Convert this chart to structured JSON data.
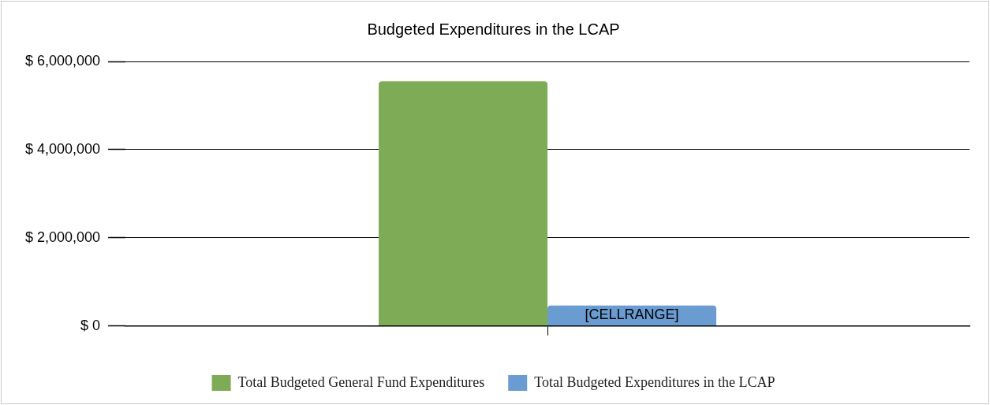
{
  "chart_data": {
    "type": "bar",
    "title": "Budgeted Expenditures in the LCAP",
    "categories": [
      null
    ],
    "series": [
      {
        "name": "Total Budgeted General Fund Expenditures",
        "color": "#7eab55",
        "values": [
          5550000
        ]
      },
      {
        "name": "Total Budgeted Expenditures in the LCAP",
        "color": "#6a9bd1",
        "values": [
          460000
        ],
        "value_labels": [
          "[CELLRANGE]"
        ]
      }
    ],
    "ylim": [
      0,
      6000000
    ],
    "yticks": [
      {
        "value": 0,
        "label": "$ 0"
      },
      {
        "value": 2000000,
        "label": "$ 2,000,000"
      },
      {
        "value": 4000000,
        "label": "$ 4,000,000"
      },
      {
        "value": 6000000,
        "label": "$ 6,000,000"
      }
    ],
    "grid": "y",
    "legend": "bottom"
  }
}
